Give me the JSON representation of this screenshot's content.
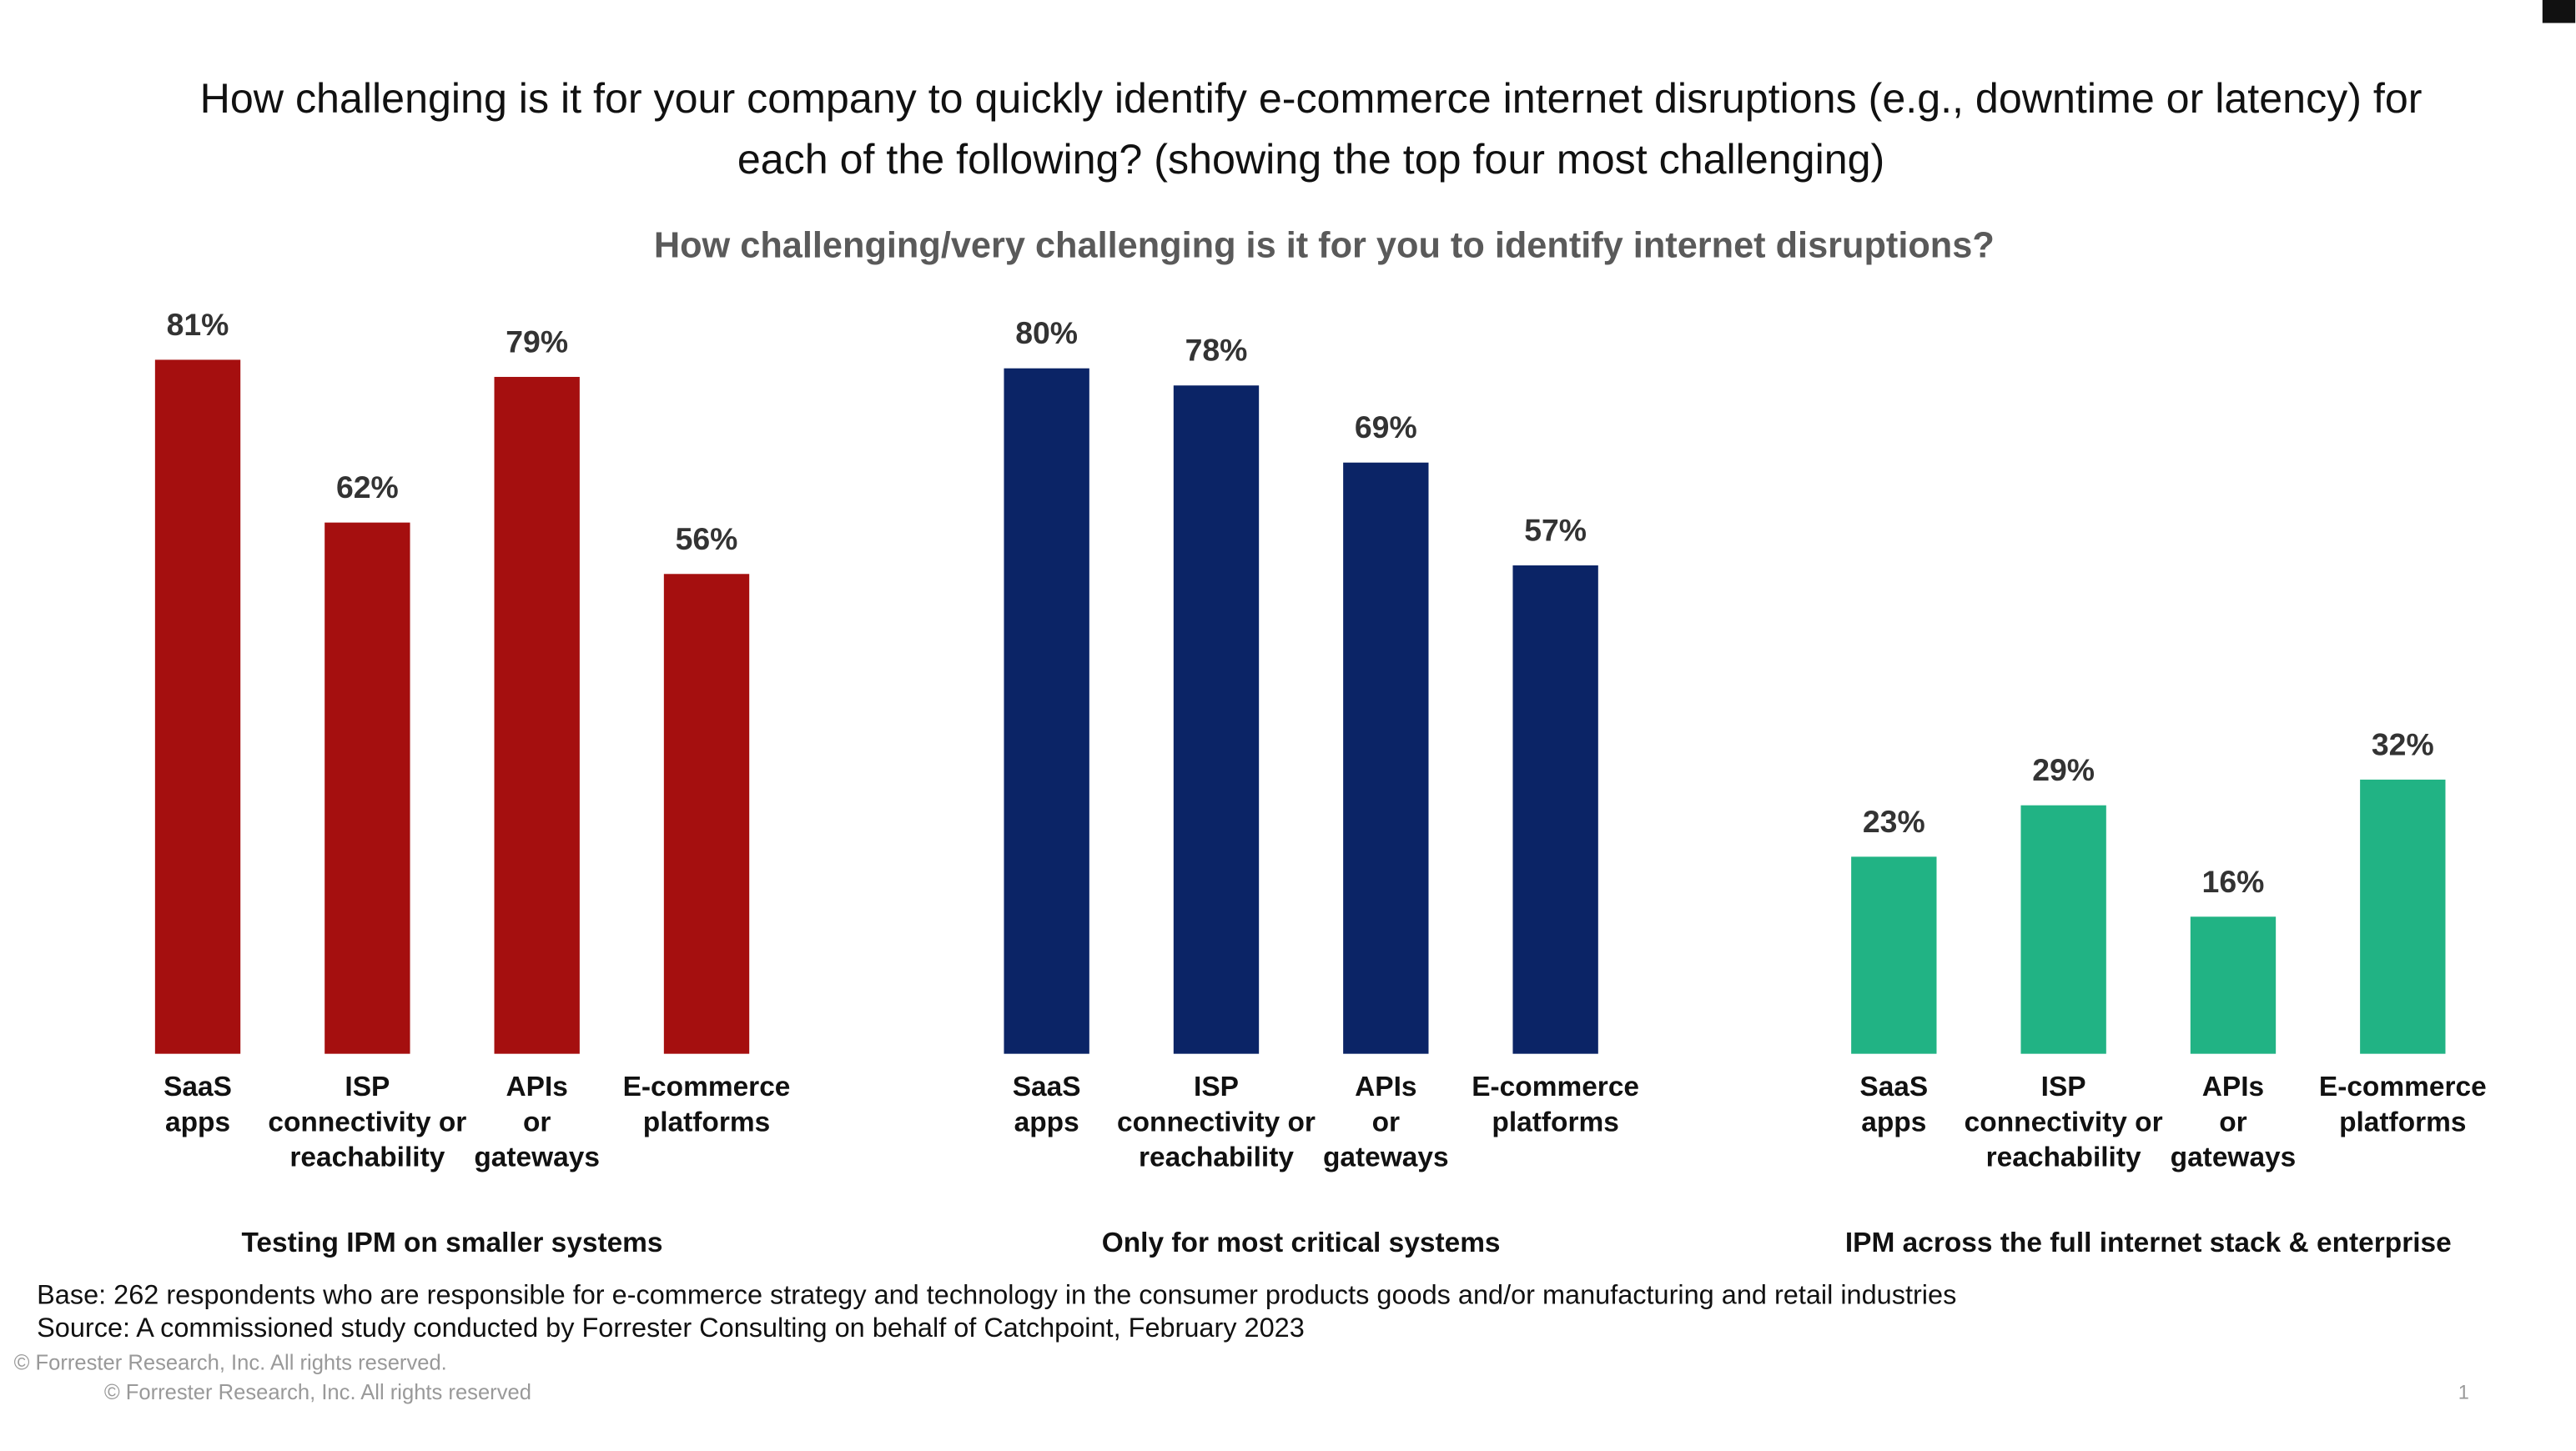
{
  "header": {
    "title": "How challenging is it for your company to quickly identify e-commerce internet disruptions (e.g., downtime or latency) for\neach of the following? (showing the top four most challenging)",
    "subtitle": "How challenging/very challenging is it for you to identify internet disruptions?"
  },
  "chart_data": [
    {
      "type": "bar",
      "title": "Testing IPM on smaller systems",
      "color": "#a50f0f",
      "categories": [
        "SaaS\napps",
        "ISP\nconnectivity or\nreachability",
        "APIs\nor\ngateways",
        "E-commerce\nplatforms"
      ],
      "values": [
        81,
        62,
        79,
        56
      ],
      "value_labels": [
        "81%",
        "62%",
        "79%",
        "56%"
      ]
    },
    {
      "type": "bar",
      "title": "Only for most critical systems",
      "color": "#0b2466",
      "categories": [
        "SaaS\napps",
        "ISP\nconnectivity or\nreachability",
        "APIs\nor\ngateways",
        "E-commerce\nplatforms"
      ],
      "values": [
        80,
        78,
        69,
        57
      ],
      "value_labels": [
        "80%",
        "78%",
        "69%",
        "57%"
      ]
    },
    {
      "type": "bar",
      "title": "IPM across the full internet stack & enterprise",
      "color": "#21b384",
      "categories": [
        "SaaS\napps",
        "ISP\nconnectivity or\nreachability",
        "APIs\nor\ngateways",
        "E-commerce\nplatforms"
      ],
      "values": [
        23,
        29,
        16,
        32
      ],
      "value_labels": [
        "23%",
        "29%",
        "16%",
        "32%"
      ]
    }
  ],
  "footer": {
    "base": "Base: 262 respondents who are responsible for e-commerce strategy and technology in the consumer products goods and/or manufacturing and retail industries",
    "source": "Source: A commissioned study conducted by Forrester Consulting on behalf of Catchpoint, February 2023",
    "copyright": "© Forrester Research, Inc. All rights reserved.",
    "copyright_slide": "© Forrester Research, Inc. All rights reserved",
    "page_number": "1"
  }
}
